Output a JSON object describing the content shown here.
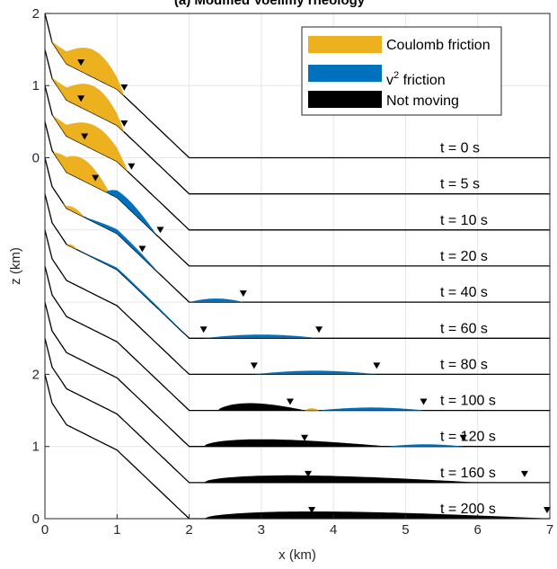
{
  "chart_data": {
    "type": "area",
    "title": "(a) Modified Voellmy rheology",
    "xlabel": "x (km)",
    "ylabel": "z (km)",
    "xlim": [
      0,
      7
    ],
    "x_ticks": [
      "0",
      "1",
      "2",
      "3",
      "4",
      "5",
      "6",
      "7"
    ],
    "y_ticks_lower": [
      "0",
      "1",
      "2"
    ],
    "y_ticks_upper": [
      "0",
      "1",
      "2"
    ],
    "grid": true,
    "legend_position": "top-right",
    "legend": [
      {
        "name": "Coulomb friction",
        "color": "#EDB120"
      },
      {
        "name": "v",
        "sup": "2",
        "suffix": " friction",
        "color": "#0072BD"
      },
      {
        "name": "Not moving",
        "color": "#000000"
      }
    ],
    "series_offset_km": 0.5,
    "snapshots": [
      {
        "label": "t = 0 s",
        "front": 1.1,
        "rear": 0.5
      },
      {
        "label": "t = 5 s",
        "front": 1.1,
        "rear": 0.5
      },
      {
        "label": "t = 10 s",
        "front": 1.2,
        "rear": 0.55
      },
      {
        "label": "t = 20 s",
        "front": 1.6,
        "rear": 0.7
      },
      {
        "label": "t = 40 s",
        "front": 2.75,
        "rear": 1.35
      },
      {
        "label": "t = 60 s",
        "front": 3.8,
        "rear": 2.2
      },
      {
        "label": "t = 80 s",
        "front": 4.6,
        "rear": 2.9
      },
      {
        "label": "t = 100 s",
        "front": 5.25,
        "rear": 3.4
      },
      {
        "label": "t = 120 s",
        "front": 5.8,
        "rear": 3.6
      },
      {
        "label": "t = 160 s",
        "front": 6.65,
        "rear": 3.65
      },
      {
        "label": "t = 200 s",
        "front": 7.0,
        "rear": 3.7
      }
    ]
  }
}
